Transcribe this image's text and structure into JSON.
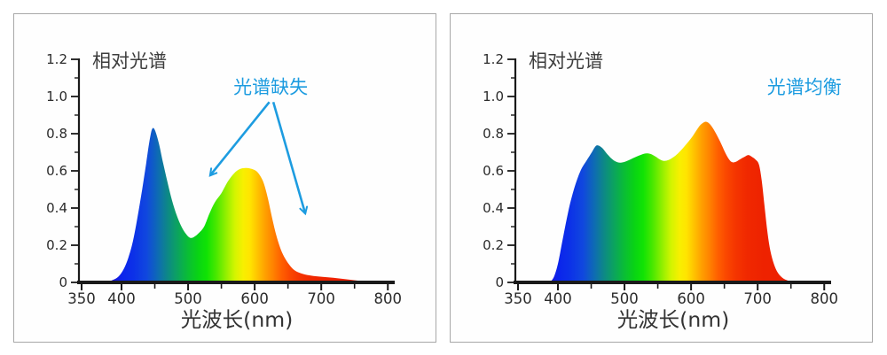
{
  "figure": {
    "background": "#ffffff",
    "panel_border_color": "#a8a8a8",
    "panel_background": "#fefefe"
  },
  "colors": {
    "annotation_blue": "#1d9ce0",
    "axis_line": "#1a1a1a",
    "tick_label": "#2b2b2b",
    "title_text": "#3d3d3d",
    "xlabel_text": "#333333"
  },
  "spectrum_gradient": [
    {
      "wl": 385,
      "color": "#2012d0"
    },
    {
      "wl": 400,
      "color": "#0b24ec"
    },
    {
      "wl": 418,
      "color": "#0c31e8"
    },
    {
      "wl": 438,
      "color": "#1048de"
    },
    {
      "wl": 455,
      "color": "#0e6cb2"
    },
    {
      "wl": 470,
      "color": "#0d8a84"
    },
    {
      "wl": 485,
      "color": "#0ba55c"
    },
    {
      "wl": 500,
      "color": "#0abe34"
    },
    {
      "wl": 515,
      "color": "#09d414"
    },
    {
      "wl": 528,
      "color": "#10e304"
    },
    {
      "wl": 542,
      "color": "#48e800"
    },
    {
      "wl": 556,
      "color": "#8eef00"
    },
    {
      "wl": 570,
      "color": "#d2f500"
    },
    {
      "wl": 583,
      "color": "#f8ef00"
    },
    {
      "wl": 593,
      "color": "#ffe400"
    },
    {
      "wl": 605,
      "color": "#ffc000"
    },
    {
      "wl": 615,
      "color": "#ffa200"
    },
    {
      "wl": 627,
      "color": "#ff8400"
    },
    {
      "wl": 640,
      "color": "#ff6000"
    },
    {
      "wl": 653,
      "color": "#fa4700"
    },
    {
      "wl": 667,
      "color": "#f53500"
    },
    {
      "wl": 685,
      "color": "#f02800"
    },
    {
      "wl": 710,
      "color": "#ee2200"
    },
    {
      "wl": 760,
      "color": "#ec1f00"
    }
  ],
  "chart_data": [
    {
      "type": "area",
      "name": "spectrum-deficient",
      "title": "相对光谱",
      "xlabel": "光波长(nm)",
      "ylabel": "",
      "xlim": [
        350,
        800
      ],
      "ylim": [
        0,
        1.2
      ],
      "x_ticks_major": [
        350,
        400,
        500,
        600,
        700,
        800
      ],
      "x_tick_labels": [
        "350",
        "400",
        "500",
        "600",
        "700",
        "800"
      ],
      "x_ticks_minor": [
        450,
        550,
        650,
        750
      ],
      "y_ticks_major": [
        0,
        0.2,
        0.4,
        0.6,
        0.8,
        1.0,
        1.2
      ],
      "y_tick_labels": [
        "0",
        "0.2",
        "0.4",
        "0.6",
        "0.8",
        "1.0",
        "1.2"
      ],
      "y_ticks_minor": [
        0.1,
        0.3,
        0.5,
        0.7,
        0.9,
        1.1
      ],
      "grid": false,
      "legend": null,
      "annotations": [
        {
          "text": "光谱缺失",
          "x": 624,
          "y": 1.05,
          "arrows": [
            {
              "x1": 622,
              "y1": 0.97,
              "x2": 533,
              "y2": 0.575
            },
            {
              "x1": 628,
              "y1": 0.97,
              "x2": 676,
              "y2": 0.37
            }
          ]
        }
      ],
      "series": [
        {
          "name": "相对光谱（光谱缺失）",
          "x": [
            375,
            385,
            395,
            403,
            410,
            417,
            424,
            431,
            437,
            442,
            446,
            450,
            456,
            462,
            469,
            476,
            483,
            490,
            497,
            503,
            509,
            516,
            524,
            532,
            540,
            550,
            560,
            570,
            578,
            586,
            594,
            602,
            608,
            614,
            620,
            626,
            632,
            638,
            644,
            652,
            660,
            670,
            682,
            695,
            710,
            728,
            745,
            762,
            778,
            790
          ],
          "y": [
            0,
            0.01,
            0.03,
            0.07,
            0.13,
            0.22,
            0.35,
            0.5,
            0.64,
            0.76,
            0.825,
            0.82,
            0.75,
            0.65,
            0.54,
            0.44,
            0.36,
            0.3,
            0.26,
            0.24,
            0.245,
            0.265,
            0.3,
            0.37,
            0.43,
            0.48,
            0.545,
            0.59,
            0.61,
            0.615,
            0.612,
            0.6,
            0.575,
            0.53,
            0.45,
            0.35,
            0.26,
            0.19,
            0.14,
            0.095,
            0.065,
            0.048,
            0.038,
            0.032,
            0.027,
            0.021,
            0.014,
            0.007,
            0.003,
            0
          ]
        }
      ]
    },
    {
      "type": "area",
      "name": "spectrum-balanced",
      "title": "相对光谱",
      "xlabel": "光波长(nm)",
      "ylabel": "",
      "xlim": [
        350,
        800
      ],
      "ylim": [
        0,
        1.2
      ],
      "x_ticks_major": [
        350,
        400,
        500,
        600,
        700,
        800
      ],
      "x_tick_labels": [
        "350",
        "400",
        "500",
        "600",
        "700",
        "800"
      ],
      "x_ticks_minor": [
        450,
        550,
        650,
        750
      ],
      "y_ticks_major": [
        0,
        0.2,
        0.4,
        0.6,
        0.8,
        1.0,
        1.2
      ],
      "y_tick_labels": [
        "0",
        "0.2",
        "0.4",
        "0.6",
        "0.8",
        "1.0",
        "1.2"
      ],
      "y_ticks_minor": [
        0.1,
        0.3,
        0.5,
        0.7,
        0.9,
        1.1
      ],
      "grid": false,
      "legend": null,
      "annotations": [
        {
          "text": "光谱均衡",
          "x": 770,
          "y": 1.05,
          "arrows": []
        }
      ],
      "series": [
        {
          "name": "相对光谱（光谱均衡）",
          "x": [
            388,
            394,
            400,
            406,
            412,
            418,
            424,
            430,
            436,
            443,
            450,
            456,
            460,
            466,
            473,
            480,
            487,
            493,
            500,
            508,
            517,
            526,
            533,
            540,
            547,
            553,
            559,
            566,
            574,
            582,
            592,
            602,
            612,
            618,
            623,
            629,
            636,
            644,
            651,
            657,
            662,
            668,
            674,
            680,
            686,
            692,
            697,
            702,
            706,
            710,
            714,
            718,
            723,
            729,
            737,
            746,
            757
          ],
          "y": [
            0,
            0.03,
            0.1,
            0.21,
            0.32,
            0.42,
            0.5,
            0.565,
            0.615,
            0.655,
            0.695,
            0.73,
            0.737,
            0.725,
            0.695,
            0.668,
            0.65,
            0.644,
            0.648,
            0.66,
            0.675,
            0.688,
            0.694,
            0.69,
            0.676,
            0.662,
            0.654,
            0.658,
            0.675,
            0.7,
            0.74,
            0.785,
            0.838,
            0.858,
            0.864,
            0.848,
            0.81,
            0.755,
            0.7,
            0.662,
            0.646,
            0.65,
            0.663,
            0.675,
            0.685,
            0.674,
            0.66,
            0.633,
            0.55,
            0.42,
            0.29,
            0.19,
            0.115,
            0.06,
            0.025,
            0.009,
            0
          ]
        }
      ]
    }
  ]
}
